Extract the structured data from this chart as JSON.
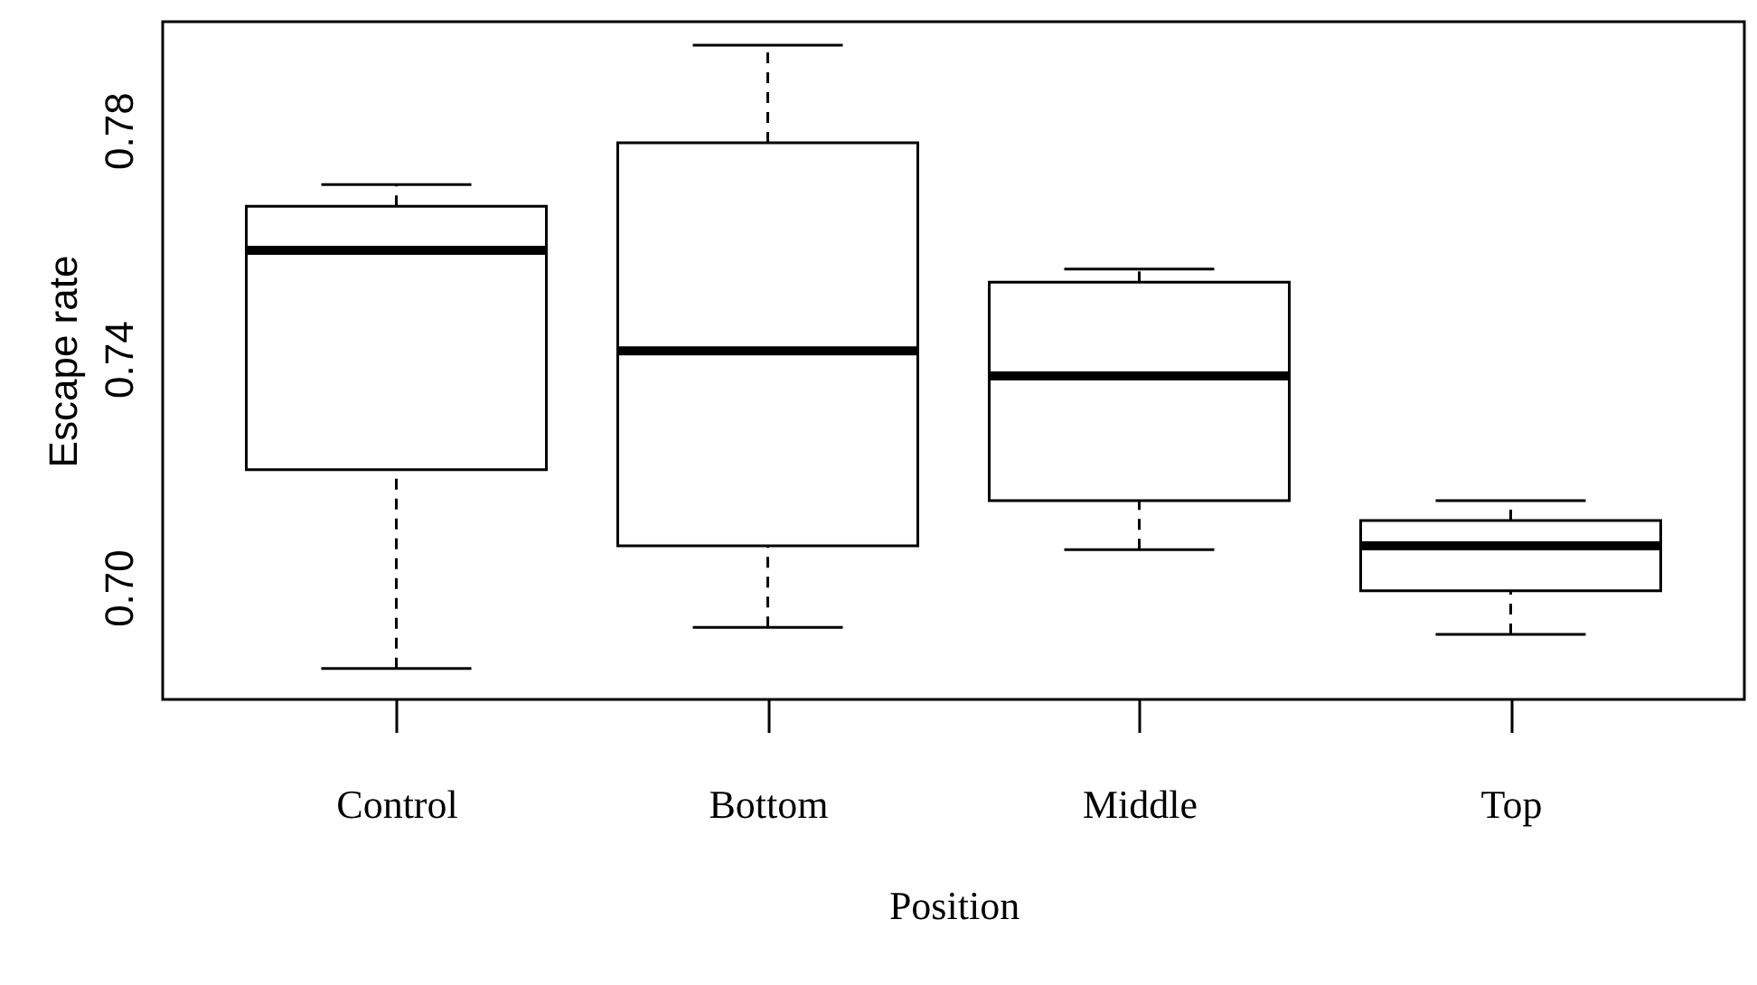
{
  "chart_data": {
    "type": "box",
    "xlabel": "Position",
    "ylabel": "Escape rate",
    "categories": [
      "Control",
      "Bottom",
      "Middle",
      "Top"
    ],
    "boxes": [
      {
        "low": 0.6858,
        "q1": 0.7206,
        "median": 0.759,
        "q3": 0.7667,
        "high": 0.7705
      },
      {
        "low": 0.693,
        "q1": 0.7073,
        "median": 0.7414,
        "q3": 0.7778,
        "high": 0.7949
      },
      {
        "low": 0.7066,
        "q1": 0.7152,
        "median": 0.737,
        "q3": 0.7534,
        "high": 0.7557
      },
      {
        "low": 0.6918,
        "q1": 0.6994,
        "median": 0.7073,
        "q3": 0.7117,
        "high": 0.7152
      }
    ],
    "ylim": [
      0.6804,
      0.799
    ],
    "yticks": [
      {
        "value": 0.7,
        "label": "0.70"
      },
      {
        "value": 0.74,
        "label": "0.74"
      },
      {
        "value": 0.78,
        "label": "0.78"
      }
    ],
    "grid": false
  }
}
